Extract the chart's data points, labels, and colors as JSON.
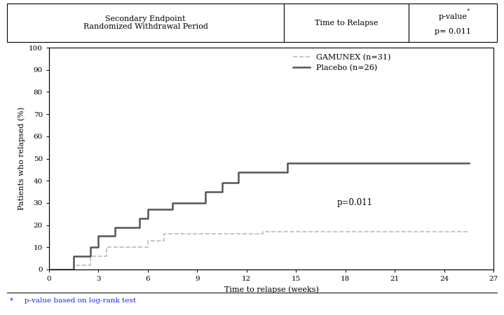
{
  "title_col1": "Secondary Endpoint\nRandomized Withdrawal Period",
  "title_col2": "Time to Relapse",
  "title_col3_line1": "p-value",
  "title_col3_line2": "p= 0.011",
  "footnote_star": "*",
  "footnote_text": "   p-value based on log-rank test",
  "xlabel": "Time to relapse (weeks)",
  "ylabel": "Patients who relapsed (%)",
  "xlim": [
    0,
    27
  ],
  "ylim": [
    0,
    100
  ],
  "xticks": [
    0,
    3,
    6,
    9,
    12,
    15,
    18,
    21,
    24,
    27
  ],
  "yticks": [
    0,
    10,
    20,
    30,
    40,
    50,
    60,
    70,
    80,
    90,
    100
  ],
  "pvalue_text": "p=0.011",
  "pvalue_x": 17.5,
  "pvalue_y": 30,
  "gamunex_color": "#bbbbbb",
  "placebo_color": "#555555",
  "gamunex_label": "GAMUNEX (n=31)",
  "placebo_label": "Placebo (n=26)",
  "gamunex_x": [
    0,
    1.5,
    2.5,
    3.5,
    6.0,
    7.0,
    13.0,
    25.5
  ],
  "gamunex_y": [
    0,
    2,
    6,
    10,
    13,
    16,
    17,
    17
  ],
  "placebo_x": [
    0,
    1.5,
    2.5,
    3.0,
    4.0,
    5.5,
    6.0,
    7.5,
    9.5,
    10.5,
    11.5,
    13.0,
    14.5,
    21.0,
    22.5,
    25.5
  ],
  "placebo_y": [
    0,
    6,
    10,
    15,
    19,
    23,
    27,
    30,
    35,
    39,
    44,
    44,
    48,
    48,
    48,
    48
  ],
  "background_color": "#ffffff",
  "col_splits": [
    0.0,
    0.565,
    0.82,
    1.0
  ]
}
